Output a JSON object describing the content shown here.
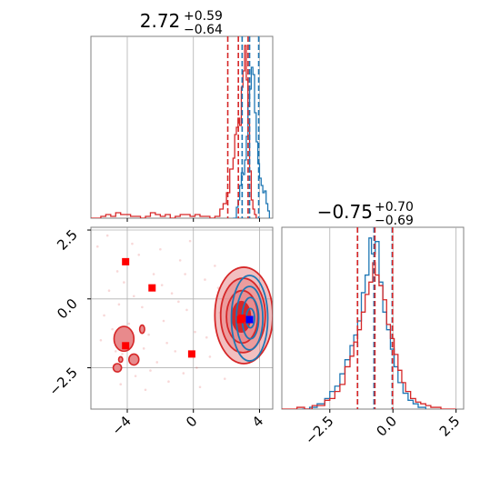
{
  "chart_data": {
    "type": "corner",
    "colors": {
      "red": "#d62728",
      "blue": "#1f77b4",
      "red_fill": "#e88a8c",
      "marker_blue": "#0000ff",
      "grid": "#b0b0b0"
    },
    "series": [
      {
        "name": "",
        "color": "red"
      },
      {
        "name": "",
        "color": "blue"
      }
    ],
    "panels": {
      "hist_x": {
        "title_main": "2.72",
        "title_plus": "+0.59",
        "title_minus": "−0.64",
        "xlim": [
          -6.2,
          4.8
        ],
        "quantile_lines": {
          "red": [
            2.08,
            2.72,
            3.31
          ],
          "blue": [
            2.95,
            3.4,
            3.95
          ]
        },
        "red_hist": [
          [
            -6.2,
            0
          ],
          [
            -5.9,
            0
          ],
          [
            -5.6,
            0.01
          ],
          [
            -5.3,
            0.02
          ],
          [
            -5.0,
            0.01
          ],
          [
            -4.7,
            0.03
          ],
          [
            -4.4,
            0.02
          ],
          [
            -4.1,
            0.02
          ],
          [
            -3.8,
            0.01
          ],
          [
            -3.5,
            0.01
          ],
          [
            -3.2,
            0.0
          ],
          [
            -2.9,
            0.01
          ],
          [
            -2.6,
            0.03
          ],
          [
            -2.3,
            0.02
          ],
          [
            -2.0,
            0.01
          ],
          [
            -1.7,
            0.02
          ],
          [
            -1.4,
            0.0
          ],
          [
            -1.1,
            0.01
          ],
          [
            -0.8,
            0.02
          ],
          [
            -0.5,
            0.02
          ],
          [
            -0.2,
            0.01
          ],
          [
            0.1,
            0.02
          ],
          [
            0.4,
            0.01
          ],
          [
            0.7,
            0.01
          ],
          [
            1.0,
            0.0
          ],
          [
            1.3,
            0.01
          ],
          [
            1.6,
            0.05
          ],
          [
            1.8,
            0.08
          ],
          [
            2.0,
            0.14
          ],
          [
            2.2,
            0.27
          ],
          [
            2.4,
            0.33
          ],
          [
            2.5,
            0.46
          ],
          [
            2.6,
            0.5
          ],
          [
            2.7,
            0.55
          ],
          [
            2.8,
            0.51
          ],
          [
            2.9,
            0.72
          ],
          [
            3.0,
            0.81
          ],
          [
            3.1,
            0.95
          ],
          [
            3.2,
            0.76
          ],
          [
            3.3,
            0.52
          ],
          [
            3.4,
            0.26
          ],
          [
            3.5,
            0.1
          ],
          [
            3.6,
            0.05
          ],
          [
            3.7,
            0.02
          ],
          [
            3.8,
            0
          ]
        ],
        "blue_hist": [
          [
            2.4,
            0
          ],
          [
            2.6,
            0.06
          ],
          [
            2.7,
            0.1
          ],
          [
            2.8,
            0.18
          ],
          [
            2.9,
            0.25
          ],
          [
            3.0,
            0.24
          ],
          [
            3.1,
            0.32
          ],
          [
            3.2,
            0.45
          ],
          [
            3.3,
            0.62
          ],
          [
            3.4,
            0.71
          ],
          [
            3.5,
            0.83
          ],
          [
            3.6,
            0.79
          ],
          [
            3.7,
            0.58
          ],
          [
            3.8,
            0.42
          ],
          [
            3.9,
            0.3
          ],
          [
            4.0,
            0.22
          ],
          [
            4.1,
            0.18
          ],
          [
            4.2,
            0.14
          ],
          [
            4.3,
            0.15
          ],
          [
            4.4,
            0.08
          ],
          [
            4.5,
            0.04
          ],
          [
            4.6,
            0
          ]
        ]
      },
      "hist_y": {
        "title_main": "−0.75",
        "title_plus": "+0.70",
        "title_minus": "−0.69",
        "xlim": [
          -4.4,
          2.8
        ],
        "ticks": [
          -2.5,
          0.0,
          2.5
        ],
        "tick_labels": [
          "−2.5",
          "0.0",
          "2.5"
        ],
        "quantile_lines": {
          "red": [
            -1.44,
            -0.75,
            -0.05
          ],
          "blue": [
            -1.4,
            -0.75,
            -0.03
          ]
        },
        "red_hist": [
          [
            -4.4,
            0
          ],
          [
            -4.1,
            0.0
          ],
          [
            -3.8,
            0.01
          ],
          [
            -3.5,
            0.0
          ],
          [
            -3.2,
            0.02
          ],
          [
            -2.9,
            0.02
          ],
          [
            -2.7,
            0.05
          ],
          [
            -2.5,
            0.06
          ],
          [
            -2.3,
            0.1
          ],
          [
            -2.1,
            0.14
          ],
          [
            -1.9,
            0.24
          ],
          [
            -1.7,
            0.3
          ],
          [
            -1.55,
            0.38
          ],
          [
            -1.4,
            0.45
          ],
          [
            -1.25,
            0.55
          ],
          [
            -1.1,
            0.65
          ],
          [
            -0.95,
            0.72
          ],
          [
            -0.8,
            0.83
          ],
          [
            -0.7,
            0.76
          ],
          [
            -0.55,
            0.7
          ],
          [
            -0.4,
            0.62
          ],
          [
            -0.25,
            0.48
          ],
          [
            -0.1,
            0.4
          ],
          [
            0.05,
            0.31
          ],
          [
            0.2,
            0.22
          ],
          [
            0.35,
            0.15
          ],
          [
            0.5,
            0.1
          ],
          [
            0.7,
            0.06
          ],
          [
            0.9,
            0.04
          ],
          [
            1.1,
            0.03
          ],
          [
            1.3,
            0.02
          ],
          [
            1.5,
            0.01
          ],
          [
            1.9,
            0.0
          ],
          [
            2.3,
            0.0
          ],
          [
            2.5,
            0
          ]
        ],
        "blue_hist": [
          [
            -3.6,
            0
          ],
          [
            -3.3,
            0.01
          ],
          [
            -3.0,
            0.03
          ],
          [
            -2.7,
            0.06
          ],
          [
            -2.5,
            0.1
          ],
          [
            -2.3,
            0.13
          ],
          [
            -2.1,
            0.2
          ],
          [
            -1.9,
            0.28
          ],
          [
            -1.7,
            0.36
          ],
          [
            -1.55,
            0.42
          ],
          [
            -1.4,
            0.5
          ],
          [
            -1.25,
            0.66
          ],
          [
            -1.1,
            0.76
          ],
          [
            -0.95,
            0.97
          ],
          [
            -0.85,
            0.88
          ],
          [
            -0.7,
            0.95
          ],
          [
            -0.55,
            0.72
          ],
          [
            -0.4,
            0.55
          ],
          [
            -0.25,
            0.45
          ],
          [
            -0.1,
            0.34
          ],
          [
            0.05,
            0.24
          ],
          [
            0.2,
            0.15
          ],
          [
            0.4,
            0.09
          ],
          [
            0.6,
            0.05
          ],
          [
            0.8,
            0.03
          ],
          [
            1.0,
            0.01
          ],
          [
            1.3,
            0
          ]
        ]
      },
      "scatter_2d": {
        "xlim": [
          -6.2,
          4.8
        ],
        "ylim": [
          -4.0,
          2.6
        ],
        "xticks": [
          -4,
          0,
          4
        ],
        "xtick_labels": [
          "−4",
          "0",
          "4"
        ],
        "yticks": [
          2.5,
          0.0,
          -2.5
        ],
        "ytick_labels": [
          "2.5",
          "0.0",
          "−2.5"
        ],
        "red_markers": [
          [
            -4.1,
            1.35
          ],
          [
            -2.5,
            0.4
          ],
          [
            -4.1,
            -1.7
          ],
          [
            -0.1,
            -2.0
          ],
          [
            2.95,
            -0.7
          ],
          [
            2.85,
            -0.75
          ]
        ],
        "blue_markers": [
          [
            3.4,
            -0.75
          ]
        ],
        "sample_points": [
          [
            -5.8,
            1.9
          ],
          [
            -5.4,
            -0.6
          ],
          [
            -5.1,
            0.3
          ],
          [
            -4.8,
            -2.4
          ],
          [
            -4.6,
            1.0
          ],
          [
            -4.4,
            -3.1
          ],
          [
            -4.2,
            0.6
          ],
          [
            -3.9,
            -0.9
          ],
          [
            -3.7,
            2.0
          ],
          [
            -3.5,
            -2.8
          ],
          [
            -3.3,
            1.6
          ],
          [
            -3.1,
            -0.3
          ],
          [
            -2.9,
            -3.3
          ],
          [
            -2.7,
            -1.3
          ],
          [
            -2.4,
            0.9
          ],
          [
            -2.2,
            -2.3
          ],
          [
            -2.0,
            1.8
          ],
          [
            -1.8,
            -0.8
          ],
          [
            -1.5,
            -3.0
          ],
          [
            -1.3,
            0.2
          ],
          [
            -1.1,
            -1.9
          ],
          [
            -0.8,
            1.4
          ],
          [
            -0.6,
            -2.7
          ],
          [
            -0.4,
            -0.4
          ],
          [
            -0.2,
            2.1
          ],
          [
            0.1,
            -1.2
          ],
          [
            0.4,
            -3.2
          ],
          [
            0.7,
            0.7
          ],
          [
            1.0,
            -2.1
          ],
          [
            1.3,
            1.2
          ],
          [
            1.6,
            -0.5
          ],
          [
            1.9,
            -2.9
          ],
          [
            -5.6,
            -1.5
          ],
          [
            -5.2,
            2.3
          ],
          [
            -4.9,
            -1.1
          ],
          [
            -4.5,
            -0.2
          ],
          [
            -3.6,
            0.1
          ],
          [
            -3.0,
            -1.8
          ],
          [
            -2.6,
            -2.6
          ],
          [
            -1.9,
            0.5
          ],
          [
            -1.6,
            -1.6
          ],
          [
            -0.9,
            -0.1
          ],
          [
            -0.5,
            0.9
          ],
          [
            0.2,
            -2.5
          ],
          [
            0.8,
            -1.4
          ],
          [
            1.5,
            0.4
          ],
          [
            -4.7,
            -1.9
          ],
          [
            -4.3,
            -2.0
          ],
          [
            -3.8,
            -1.4
          ]
        ],
        "islands": [
          {
            "cx": -4.2,
            "cy": -1.45,
            "rx": 0.6,
            "ry": 0.45
          },
          {
            "cx": -3.6,
            "cy": -2.2,
            "rx": 0.3,
            "ry": 0.2
          },
          {
            "cx": -3.1,
            "cy": -1.1,
            "rx": 0.15,
            "ry": 0.15
          },
          {
            "cx": -4.6,
            "cy": -2.5,
            "rx": 0.25,
            "ry": 0.15
          },
          {
            "cx": -4.4,
            "cy": -2.2,
            "rx": 0.12,
            "ry": 0.1
          }
        ],
        "red_contours": [
          {
            "cx": 3.05,
            "cy": -0.6,
            "rx": 1.75,
            "ry": 1.75,
            "fill_opacity": 0.55
          },
          {
            "cx": 3.0,
            "cy": -0.6,
            "rx": 1.35,
            "ry": 1.35,
            "fill_opacity": 0.65
          },
          {
            "cx": 2.95,
            "cy": -0.65,
            "rx": 0.95,
            "ry": 0.95,
            "fill_opacity": 0.8
          },
          {
            "cx": 2.9,
            "cy": -0.65,
            "rx": 0.55,
            "ry": 0.55,
            "fill_opacity": 1.0
          }
        ],
        "blue_contours": [
          {
            "cx": 3.4,
            "cy": -0.7,
            "rx": 1.1,
            "ry": 1.55
          },
          {
            "cx": 3.4,
            "cy": -0.7,
            "rx": 0.8,
            "ry": 1.15
          },
          {
            "cx": 3.45,
            "cy": -0.7,
            "rx": 0.5,
            "ry": 0.75
          },
          {
            "cx": 3.45,
            "cy": -0.7,
            "rx": 0.25,
            "ry": 0.35
          }
        ]
      }
    }
  }
}
